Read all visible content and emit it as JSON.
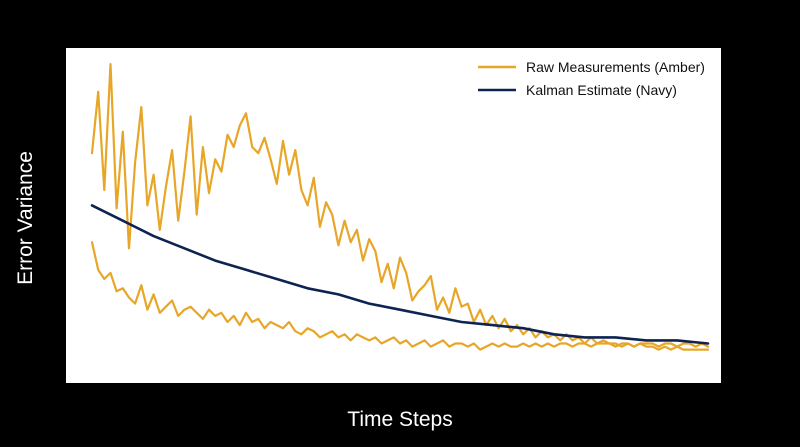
{
  "chart_data": {
    "type": "line",
    "title": "",
    "xlabel": "Time Steps",
    "ylabel": "Error Variance",
    "xlim": [
      0,
      200
    ],
    "ylim": [
      0,
      100
    ],
    "grid": false,
    "ticks_shown": false,
    "legend_placement": "top-right",
    "colors": {
      "amber": "#E8A628",
      "navy": "#0E2352",
      "plot_bg": "#FFFFFF",
      "figure_bg": "#000000"
    },
    "series": [
      {
        "name": "Raw Measurements (Amber)",
        "color": "#E8A628",
        "x": [
          0,
          2,
          4,
          6,
          8,
          10,
          12,
          14,
          16,
          18,
          20,
          22,
          24,
          26,
          28,
          30,
          32,
          34,
          36,
          38,
          40,
          42,
          44,
          46,
          48,
          50,
          52,
          54,
          56,
          58,
          60,
          62,
          64,
          66,
          68,
          70,
          72,
          74,
          76,
          78,
          80,
          82,
          84,
          86,
          88,
          90,
          92,
          94,
          96,
          98,
          100,
          102,
          104,
          106,
          108,
          110,
          112,
          114,
          116,
          118,
          120,
          122,
          124,
          126,
          128,
          130,
          132,
          134,
          136,
          138,
          140,
          142,
          144,
          146,
          148,
          150,
          152,
          154,
          156,
          158,
          160,
          162,
          164,
          166,
          168,
          170,
          172,
          174,
          176,
          178,
          180,
          182,
          184,
          186,
          188,
          190,
          192,
          194,
          196,
          198,
          200
        ],
        "values": [
          69,
          89,
          57,
          98,
          51,
          76,
          38,
          66,
          84,
          52,
          62,
          44,
          58,
          70,
          47,
          63,
          81,
          49,
          71,
          56,
          67,
          63,
          75,
          71,
          78,
          82,
          71,
          69,
          74,
          67,
          59,
          73,
          62,
          70,
          57,
          52,
          61,
          45,
          53,
          49,
          39,
          47,
          40,
          44,
          34,
          41,
          37,
          27,
          33,
          25,
          35,
          30,
          21,
          24,
          26,
          29,
          18,
          22,
          17,
          25,
          19,
          20,
          14,
          18,
          13,
          16,
          12,
          15,
          11,
          13,
          10,
          12,
          9,
          11,
          9,
          10,
          8,
          10,
          8,
          9,
          7,
          9,
          7,
          8,
          7,
          7,
          6,
          7,
          6,
          7,
          6,
          6,
          5,
          6,
          5,
          6,
          5,
          5,
          5,
          5,
          5
        ],
        "line_type": "noisy_upper"
      },
      {
        "name": "",
        "color": "#E8A628",
        "x": [
          0,
          2,
          4,
          6,
          8,
          10,
          12,
          14,
          16,
          18,
          20,
          22,
          24,
          26,
          28,
          30,
          32,
          34,
          36,
          38,
          40,
          42,
          44,
          46,
          48,
          50,
          52,
          54,
          56,
          58,
          60,
          62,
          64,
          66,
          68,
          70,
          72,
          74,
          76,
          78,
          80,
          82,
          84,
          86,
          88,
          90,
          92,
          94,
          96,
          98,
          100,
          102,
          104,
          106,
          108,
          110,
          112,
          114,
          116,
          118,
          120,
          122,
          124,
          126,
          128,
          130,
          132,
          134,
          136,
          138,
          140,
          142,
          144,
          146,
          148,
          150,
          152,
          154,
          156,
          158,
          160,
          162,
          164,
          166,
          168,
          170,
          172,
          174,
          176,
          178,
          180,
          182,
          184,
          186,
          188,
          190,
          192,
          194,
          196,
          198,
          200
        ],
        "values": [
          40,
          31,
          28,
          30,
          24,
          25,
          22,
          20,
          26,
          18,
          23,
          17,
          19,
          21,
          16,
          18,
          19,
          17,
          15,
          18,
          16,
          17,
          14,
          16,
          13,
          17,
          14,
          15,
          12,
          14,
          13,
          12,
          14,
          11,
          10,
          12,
          11,
          9,
          10,
          11,
          9,
          10,
          8,
          10,
          9,
          8,
          9,
          7,
          8,
          9,
          7,
          8,
          6,
          7,
          8,
          6,
          7,
          8,
          6,
          7,
          7,
          6,
          7,
          5,
          6,
          7,
          6,
          7,
          6,
          6,
          7,
          6,
          7,
          6,
          7,
          6,
          7,
          7,
          6,
          7,
          7,
          6,
          7,
          7,
          7,
          6,
          7,
          7,
          6,
          7,
          7,
          7,
          6,
          7,
          7,
          6,
          7,
          7,
          6,
          7,
          6
        ],
        "line_type": "noisy_lower"
      },
      {
        "name": "Kalman Estimate (Navy)",
        "color": "#0E2352",
        "x": [
          0,
          10,
          20,
          30,
          40,
          50,
          60,
          70,
          80,
          90,
          100,
          110,
          120,
          130,
          140,
          150,
          160,
          170,
          180,
          190,
          200
        ],
        "values": [
          52,
          47,
          42,
          38,
          34,
          31,
          28,
          25,
          23,
          20,
          18,
          16,
          14,
          13,
          12,
          10,
          9,
          9,
          8,
          8,
          7
        ],
        "line_type": "smooth"
      }
    ]
  }
}
